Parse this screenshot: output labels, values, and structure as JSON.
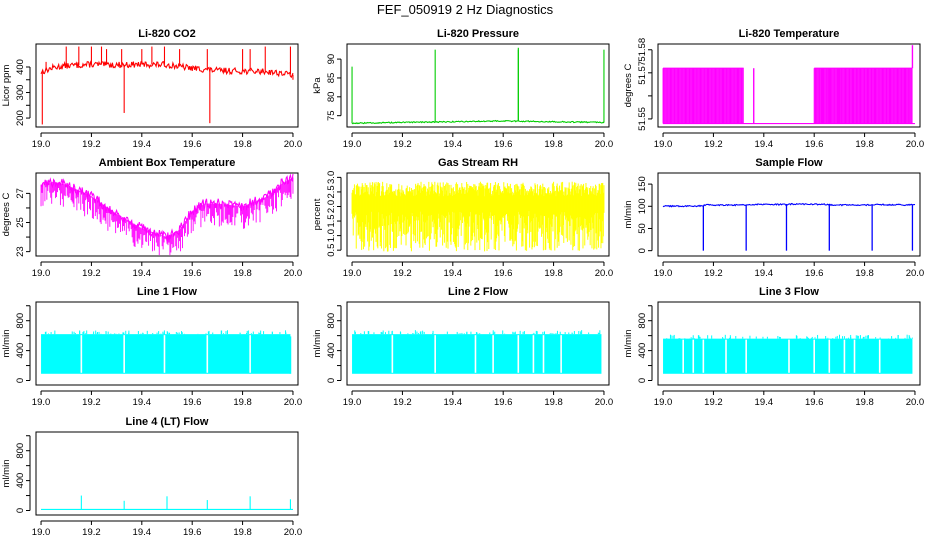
{
  "figure_title": "FEF_050919  2 Hz Diagnostics",
  "chart_data": [
    {
      "id": "co2",
      "type": "line",
      "title": "Li-820 CO2",
      "ylabel": "Licor ppm",
      "color": "#ff0000",
      "x_ticks": [
        19.0,
        19.2,
        19.4,
        19.6,
        19.8,
        20.0
      ],
      "xlim": [
        18.98,
        20.02
      ],
      "y_ticks": [
        200,
        250,
        300,
        350,
        400
      ],
      "y_tick_labels": [
        "200",
        "",
        "300",
        "",
        "400"
      ],
      "ylim": [
        165,
        490
      ],
      "series": [
        {
          "name": "Li-820 CO2",
          "x": [
            19.0,
            19.05,
            19.1,
            19.2,
            19.3,
            19.4,
            19.5,
            19.6,
            19.7,
            19.8,
            19.9,
            20.0
          ],
          "y": [
            380,
            398,
            405,
            410,
            408,
            410,
            409,
            395,
            386,
            384,
            382,
            370
          ],
          "noise": 12
        }
      ],
      "spikes": [
        [
          19.005,
          175
        ],
        [
          19.02,
          420
        ],
        [
          19.1,
          480
        ],
        [
          19.15,
          480
        ],
        [
          19.2,
          480
        ],
        [
          19.24,
          480
        ],
        [
          19.26,
          470
        ],
        [
          19.32,
          470
        ],
        [
          19.33,
          220
        ],
        [
          19.4,
          470
        ],
        [
          19.44,
          480
        ],
        [
          19.49,
          480
        ],
        [
          19.55,
          470
        ],
        [
          19.66,
          470
        ],
        [
          19.67,
          180
        ],
        [
          19.8,
          470
        ],
        [
          19.83,
          470
        ],
        [
          19.89,
          480
        ],
        [
          19.99,
          480
        ],
        [
          20.0,
          350
        ]
      ]
    },
    {
      "id": "pressure",
      "type": "line",
      "title": "Li-820 Pressure",
      "ylabel": "kPa",
      "color": "#00cd00",
      "x_ticks": [
        19.0,
        19.2,
        19.4,
        19.6,
        19.8,
        20.0
      ],
      "xlim": [
        18.98,
        20.02
      ],
      "y_ticks": [
        75,
        80,
        85,
        90
      ],
      "y_tick_labels": [
        "75",
        "80",
        "85",
        "90"
      ],
      "ylim": [
        72.0,
        94.0
      ],
      "series": [
        {
          "name": "Li-820 Pressure",
          "x": [
            19.0,
            19.2,
            19.4,
            19.6,
            19.8,
            20.0
          ],
          "y": [
            73.0,
            73.2,
            73.4,
            73.6,
            73.4,
            73.2
          ],
          "noise": 0.15
        }
      ],
      "spikes": [
        [
          19.0,
          88
        ],
        [
          19.33,
          92.5
        ],
        [
          19.66,
          93
        ],
        [
          19.66,
          92.5
        ],
        [
          20.0,
          92.5
        ]
      ]
    },
    {
      "id": "temperature",
      "type": "bands",
      "title": "Li-820 Temperature",
      "ylabel": "degrees C",
      "color": "#ff00ff",
      "x_ticks": [
        19.0,
        19.2,
        19.4,
        19.6,
        19.8,
        20.0
      ],
      "xlim": [
        18.98,
        20.02
      ],
      "y_ticks": [
        51.55,
        51.56,
        51.57,
        51.58
      ],
      "y_tick_labels": [
        "51.55",
        "",
        "51.57",
        "51.58"
      ],
      "ylim": [
        51.5465,
        51.5825
      ],
      "low": 51.548,
      "high": 51.572,
      "bands": [
        [
          19.0,
          19.32
        ],
        [
          19.6,
          19.99
        ]
      ],
      "bars": [
        19.36,
        19.63,
        19.66,
        19.7,
        19.74,
        19.77,
        19.8,
        19.84,
        19.9
      ],
      "spikes": [
        [
          19.99,
          51.582
        ]
      ]
    },
    {
      "id": "ambient",
      "type": "line",
      "title": "Ambient Box Temperature",
      "ylabel": "degrees C",
      "color": "#ff00ff",
      "x_ticks": [
        19.0,
        19.2,
        19.4,
        19.6,
        19.8,
        20.0
      ],
      "xlim": [
        18.98,
        20.02
      ],
      "y_ticks": [
        23,
        24,
        25,
        26,
        27
      ],
      "y_tick_labels": [
        "23",
        "",
        "25",
        "",
        "27"
      ],
      "ylim": [
        22.7,
        28.4
      ],
      "series": [
        {
          "name": "Ambient Box Temperature",
          "x": [
            19.0,
            19.05,
            19.1,
            19.2,
            19.3,
            19.4,
            19.5,
            19.55,
            19.6,
            19.65,
            19.7,
            19.8,
            19.9,
            19.95,
            20.0
          ],
          "y": [
            27.6,
            27.8,
            27.6,
            26.8,
            25.6,
            24.6,
            24.0,
            24.5,
            25.8,
            26.3,
            26.3,
            26.1,
            26.8,
            27.6,
            28.1
          ],
          "noise": 0.35
        }
      ],
      "spikes": []
    },
    {
      "id": "rh",
      "type": "noise",
      "title": "Gas Stream RH",
      "ylabel": "percent",
      "color": "#ffff00",
      "x_ticks": [
        19.0,
        19.2,
        19.4,
        19.6,
        19.8,
        20.0
      ],
      "xlim": [
        18.98,
        20.02
      ],
      "y_ticks": [
        0.5,
        1.0,
        1.5,
        2.0,
        2.5,
        3.0
      ],
      "y_tick_labels": [
        "0.5",
        "1.0",
        "1.5",
        "2.0",
        "2.5",
        "3.0"
      ],
      "ylim": [
        0.3,
        3.15
      ],
      "x_range": [
        19.0,
        20.0
      ],
      "top": 2.85,
      "floor": 0.45
    },
    {
      "id": "sample_flow",
      "type": "line",
      "title": "Sample Flow",
      "ylabel": "ml/min",
      "color": "#0000ff",
      "x_ticks": [
        19.0,
        19.2,
        19.4,
        19.6,
        19.8,
        20.0
      ],
      "xlim": [
        18.98,
        20.02
      ],
      "y_ticks": [
        0,
        50,
        100,
        150
      ],
      "y_tick_labels": [
        "0",
        "50",
        "100",
        "150"
      ],
      "ylim": [
        -12,
        175
      ],
      "series": [
        {
          "name": "Sample Flow",
          "x": [
            19.0,
            19.16,
            19.165,
            19.33,
            19.335,
            19.5,
            19.505,
            19.66,
            19.665,
            19.83,
            19.835,
            20.0
          ],
          "y": [
            100,
            101,
            103,
            103,
            104,
            104,
            105,
            104,
            103,
            103,
            104,
            103
          ],
          "noise": 1.5
        }
      ],
      "dips": [
        19.16,
        19.33,
        19.49,
        19.66,
        19.83,
        19.99
      ],
      "dip_to": 0,
      "spikes": []
    },
    {
      "id": "line1",
      "type": "flow",
      "title": "Line 1 Flow",
      "ylabel": "ml/min",
      "color": "#00ffff",
      "x_ticks": [
        19.0,
        19.2,
        19.4,
        19.6,
        19.8,
        20.0
      ],
      "xlim": [
        18.98,
        20.02
      ],
      "y_ticks": [
        0,
        200,
        400,
        600,
        800,
        1000
      ],
      "y_tick_labels": [
        "0",
        "",
        "400",
        "",
        "800",
        ""
      ],
      "ylim": [
        -60,
        1050
      ],
      "x_range": [
        19.0,
        19.99
      ],
      "top": 620,
      "floor": 90,
      "gaps": [
        19.16,
        19.33,
        19.49,
        19.66,
        19.83
      ],
      "spikes": [
        [
          19.99,
          590
        ]
      ]
    },
    {
      "id": "line2",
      "type": "flow",
      "title": "Line 2 Flow",
      "ylabel": "ml/min",
      "color": "#00ffff",
      "x_ticks": [
        19.0,
        19.2,
        19.4,
        19.6,
        19.8,
        20.0
      ],
      "xlim": [
        18.98,
        20.02
      ],
      "y_ticks": [
        0,
        200,
        400,
        600,
        800,
        1000
      ],
      "y_tick_labels": [
        "0",
        "",
        "400",
        "",
        "800",
        ""
      ],
      "ylim": [
        -60,
        1050
      ],
      "x_range": [
        19.0,
        19.99
      ],
      "top": 620,
      "floor": 90,
      "gaps": [
        19.16,
        19.33,
        19.49,
        19.56,
        19.66,
        19.72,
        19.76,
        19.83
      ],
      "spikes": []
    },
    {
      "id": "line3",
      "type": "flow",
      "title": "Line 3 Flow",
      "ylabel": "ml/min",
      "color": "#00ffff",
      "x_ticks": [
        19.0,
        19.2,
        19.4,
        19.6,
        19.8,
        20.0
      ],
      "xlim": [
        18.98,
        20.02
      ],
      "y_ticks": [
        0,
        200,
        400,
        600,
        800,
        1000
      ],
      "y_tick_labels": [
        "0",
        "",
        "400",
        "",
        "800",
        ""
      ],
      "ylim": [
        -60,
        1050
      ],
      "x_range": [
        19.0,
        19.99
      ],
      "top": 560,
      "floor": 90,
      "gaps": [
        19.08,
        19.12,
        19.16,
        19.25,
        19.33,
        19.5,
        19.6,
        19.66,
        19.72,
        19.76,
        19.86
      ],
      "spikes": []
    },
    {
      "id": "line4",
      "type": "line",
      "title": "Line 4 (LT) Flow",
      "ylabel": "ml/min",
      "color": "#00ffff",
      "x_ticks": [
        19.0,
        19.2,
        19.4,
        19.6,
        19.8,
        20.0
      ],
      "xlim": [
        18.98,
        20.02
      ],
      "y_ticks": [
        0,
        200,
        400,
        600,
        800,
        1000
      ],
      "y_tick_labels": [
        "0",
        "",
        "400",
        "",
        "800",
        ""
      ],
      "ylim": [
        -60,
        1050
      ],
      "series": [
        {
          "name": "Line 4 (LT) Flow",
          "x": [
            19.0,
            20.0
          ],
          "y": [
            15,
            15
          ],
          "noise": 0
        }
      ],
      "spikes": [
        [
          19.16,
          200
        ],
        [
          19.33,
          130
        ],
        [
          19.5,
          190
        ],
        [
          19.66,
          140
        ],
        [
          19.83,
          190
        ],
        [
          19.99,
          150
        ]
      ]
    }
  ]
}
